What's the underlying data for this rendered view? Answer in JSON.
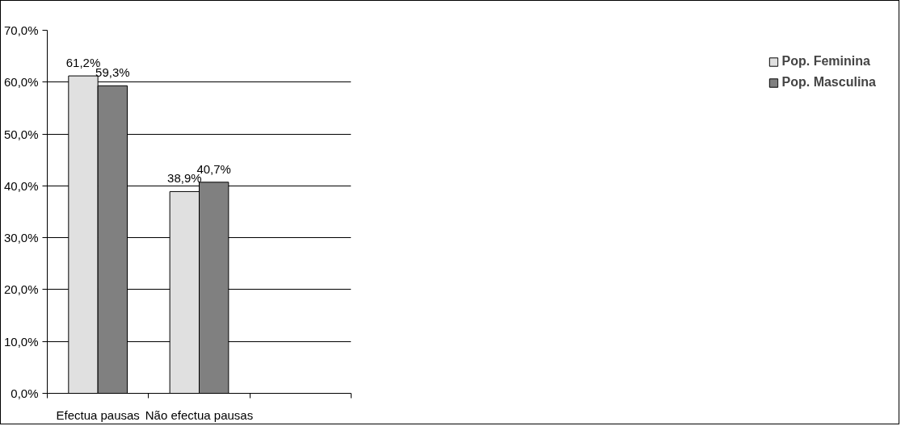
{
  "chart_data": {
    "type": "bar",
    "categories": [
      "Efectua pausas",
      "Não efectua pausas",
      null
    ],
    "series": [
      {
        "name": "Pop. Feminina",
        "color": "#e0e0e0",
        "values": [
          61.2,
          38.9,
          null
        ],
        "value_labels": [
          "61,2%",
          "38,9%",
          null
        ]
      },
      {
        "name": "Pop. Masculina",
        "color": "#808080",
        "values": [
          59.3,
          40.7,
          null
        ],
        "value_labels": [
          "59,3%",
          "40,7%",
          null
        ]
      }
    ],
    "ylim": [
      0,
      70
    ],
    "yticks": [
      {
        "value": 0,
        "label": "0,0%"
      },
      {
        "value": 10,
        "label": "10,0%"
      },
      {
        "value": 20,
        "label": "20,0%"
      },
      {
        "value": 30,
        "label": "30,0%"
      },
      {
        "value": 40,
        "label": "40,0%"
      },
      {
        "value": 50,
        "label": "50,0%"
      },
      {
        "value": 60,
        "label": "60,0%"
      },
      {
        "value": 70,
        "label": "70,0%"
      }
    ],
    "grid": "y",
    "legend": "right"
  }
}
